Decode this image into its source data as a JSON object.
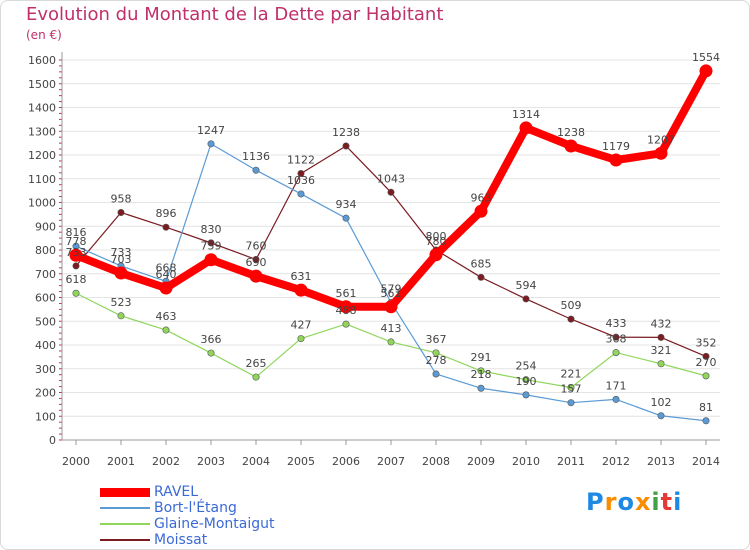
{
  "header": {
    "title": "Evolution du Montant de la Dette par Habitant",
    "unit": "(en €)"
  },
  "logo": {
    "text": "Proxiti",
    "letter_colors": [
      "#1e88e5",
      "#fb8c00",
      "#1e88e5",
      "#fb8c00",
      "#43a047",
      "#e53935",
      "#1e88e5"
    ]
  },
  "chart_data": {
    "type": "line",
    "title": "Evolution du Montant de la Dette par Habitant",
    "ylabel": "(en €)",
    "xlabel": "",
    "x": [
      "2000",
      "2001",
      "2002",
      "2003",
      "2004",
      "2005",
      "2006",
      "2007",
      "2008",
      "2009",
      "2010",
      "2011",
      "2012",
      "2013",
      "2014"
    ],
    "ylim": [
      0,
      1600
    ],
    "yticks": [
      0,
      100,
      200,
      300,
      400,
      500,
      600,
      700,
      800,
      900,
      1000,
      1100,
      1200,
      1300,
      1400,
      1500,
      1600
    ],
    "grid": "horizontal",
    "legend_position": "bottom-left",
    "series": [
      {
        "name": "Moissat",
        "color": "#7b1c22",
        "values": [
          733,
          958,
          896,
          830,
          760,
          1122,
          1238,
          1043,
          800,
          685,
          594,
          509,
          433,
          432,
          352
        ]
      },
      {
        "name": "Glaine-Montaigut",
        "color": "#90d65c",
        "values": [
          618,
          523,
          463,
          366,
          265,
          427,
          488,
          413,
          367,
          291,
          254,
          221,
          368,
          321,
          270
        ]
      },
      {
        "name": "Bort-l'Étang",
        "color": "#5b9bd5",
        "values": [
          816,
          733,
          668,
          1247,
          1136,
          1036,
          934,
          579,
          278,
          218,
          190,
          157,
          171,
          102,
          81
        ]
      },
      {
        "name": "RAVEL",
        "color": "#ff0000",
        "values": [
          778,
          703,
          640,
          759,
          690,
          631,
          561,
          561,
          780,
          963,
          1314,
          1238,
          1179,
          1207,
          1554
        ]
      }
    ]
  }
}
